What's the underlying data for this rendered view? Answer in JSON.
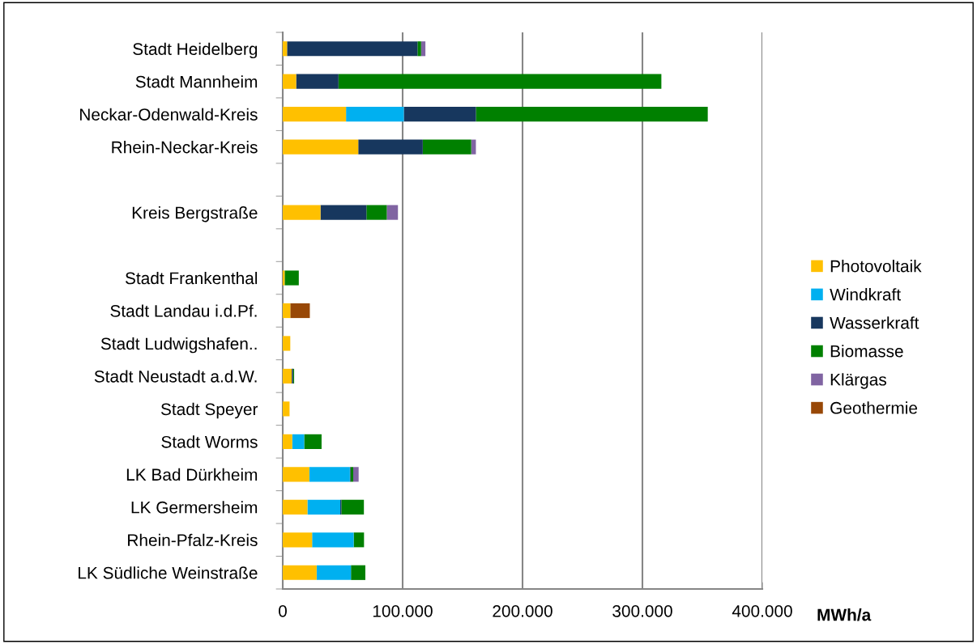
{
  "chart_data": {
    "type": "bar",
    "orientation": "horizontal",
    "stacked": true,
    "categories": [
      "Stadt Heidelberg",
      "Stadt Mannheim",
      "Neckar-Odenwald-Kreis",
      "Rhein-Neckar-Kreis",
      null,
      "Kreis Bergstraße",
      null,
      "Stadt Frankenthal",
      "Stadt Landau i.d.Pf.",
      "Stadt Ludwigshafen..",
      "Stadt Neustadt a.d.W.",
      "Stadt Speyer",
      "Stadt Worms",
      "LK Bad Dürkheim",
      "LK Germersheim",
      "Rhein-Pfalz-Kreis",
      "LK Südliche Weinstraße"
    ],
    "series": [
      {
        "name": "Photovoltaik",
        "color": "#ffc000",
        "values": [
          3600,
          11200,
          52800,
          63000,
          null,
          31500,
          null,
          1600,
          6300,
          6300,
          7500,
          5700,
          7900,
          22200,
          20600,
          24500,
          28300
        ]
      },
      {
        "name": "Windkraft",
        "color": "#00b0f0",
        "values": [
          0,
          0,
          48200,
          0,
          null,
          0,
          null,
          0,
          0,
          0,
          0,
          0,
          10000,
          33800,
          27400,
          34700,
          28600
        ]
      },
      {
        "name": "Wasserkraft",
        "color": "#17375e",
        "values": [
          108800,
          35300,
          60100,
          53800,
          null,
          38300,
          null,
          0,
          0,
          0,
          1100,
          0,
          0,
          500,
          900,
          0,
          0
        ]
      },
      {
        "name": "Biomasse",
        "color": "#008000",
        "values": [
          3000,
          269300,
          193400,
          40400,
          null,
          17000,
          null,
          11800,
          0,
          0,
          900,
          0,
          14500,
          2300,
          18800,
          8600,
          12000
        ]
      },
      {
        "name": "Klärgas",
        "color": "#8064a2",
        "values": [
          3600,
          0,
          0,
          3900,
          null,
          9300,
          null,
          0,
          0,
          0,
          0,
          0,
          0,
          4500,
          0,
          0,
          0
        ]
      },
      {
        "name": "Geothermie",
        "color": "#984807",
        "values": [
          0,
          0,
          0,
          0,
          null,
          0,
          null,
          0,
          16300,
          0,
          0,
          0,
          0,
          0,
          0,
          0,
          0
        ]
      }
    ],
    "xlim": [
      0,
      400000
    ],
    "xticks": [
      0,
      {
        "value": 100000,
        "label": "100.000"
      },
      {
        "value": 200000,
        "label": "200.000"
      },
      {
        "value": 300000,
        "label": "300.000"
      },
      {
        "value": 400000,
        "label": "400.000"
      }
    ],
    "xlabel": "MWh/a",
    "grid": "x",
    "legend": "right"
  }
}
